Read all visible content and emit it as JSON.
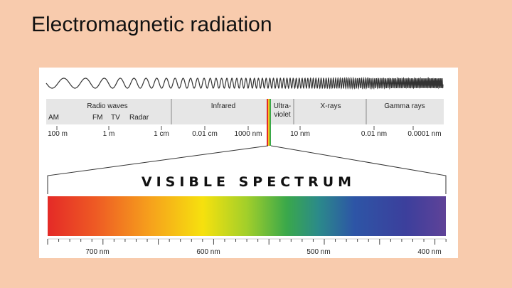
{
  "slide": {
    "title": "Electromagnetic radiation"
  },
  "spectrum": {
    "bands": {
      "radio": "Radio waves",
      "infrared": "Infrared",
      "uv_line1": "Ultra-",
      "uv_line2": "violet",
      "xrays": "X-rays",
      "gamma": "Gamma rays"
    },
    "radio_sub": {
      "am": "AM",
      "fm": "FM",
      "tv": "TV",
      "radar": "Radar"
    },
    "scale": [
      "100 m",
      "1 m",
      "1 cm",
      "0.01 cm",
      "1000 nm",
      "10 nm",
      "0.01 nm",
      "0.0001 nm"
    ]
  },
  "visible": {
    "title": "VISIBLE SPECTRUM",
    "ticks": [
      "700 nm",
      "600 nm",
      "500 nm",
      "400 nm"
    ]
  }
}
